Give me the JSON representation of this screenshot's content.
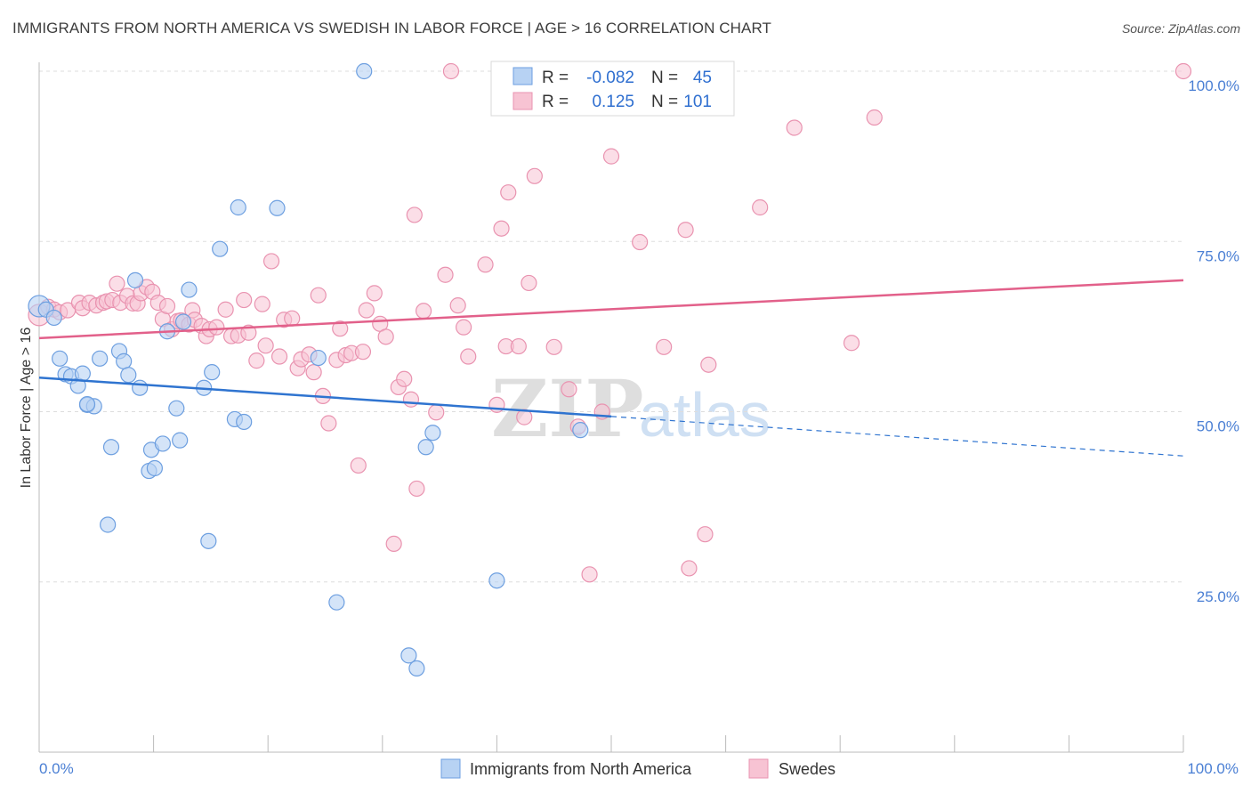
{
  "header": {
    "title": "IMMIGRANTS FROM NORTH AMERICA VS SWEDISH IN LABOR FORCE | AGE > 16 CORRELATION CHART",
    "source": "Source: ZipAtlas.com"
  },
  "legend": {
    "r_label": "R =",
    "n_label": "N =",
    "series": [
      {
        "r": "-0.082",
        "n": "45"
      },
      {
        "r": "0.125",
        "n": "101"
      }
    ]
  },
  "watermark": {
    "zip": "ZIP",
    "atlas": "atlas"
  },
  "colors": {
    "blue_fill": "#b7d2f3",
    "blue_stroke": "#6d9fe0",
    "blue_line": "#2f74d0",
    "pink_fill": "#f7c3d3",
    "pink_stroke": "#e993b0",
    "pink_line": "#e2608a",
    "tick_text": "#4a7fd4"
  },
  "chart_data": {
    "type": "scatter",
    "xlabel": "",
    "ylabel": "In Labor Force | Age > 16",
    "xlim": [
      0,
      100
    ],
    "ylim": [
      0,
      100
    ],
    "x_tick_labels": [
      "0.0%",
      "100.0%"
    ],
    "y_tick_labels": [
      "25.0%",
      "50.0%",
      "75.0%",
      "100.0%"
    ],
    "y_ticks": [
      25,
      50,
      75,
      100
    ],
    "grid": "horizontal dashed",
    "legend_position": "top-center",
    "series": [
      {
        "name": "Immigrants from North America",
        "color": "#6d9fe0",
        "trend": {
          "x0": 0,
          "y0": 55.0,
          "x1": 50,
          "y1": 49.3,
          "dash_to_x": 100,
          "dash_to_y": 43.5
        },
        "points": [
          [
            0.0,
            65.5
          ],
          [
            0.6,
            65.0
          ],
          [
            1.3,
            63.8
          ],
          [
            1.8,
            57.8
          ],
          [
            2.3,
            55.5
          ],
          [
            2.8,
            55.2
          ],
          [
            3.4,
            53.8
          ],
          [
            3.8,
            55.6
          ],
          [
            4.2,
            51.0
          ],
          [
            4.8,
            50.8
          ],
          [
            5.3,
            57.8
          ],
          [
            6.3,
            44.8
          ],
          [
            7.0,
            58.9
          ],
          [
            7.4,
            57.4
          ],
          [
            7.8,
            55.4
          ],
          [
            6.0,
            33.4
          ],
          [
            8.4,
            69.3
          ],
          [
            8.8,
            53.5
          ],
          [
            9.6,
            41.3
          ],
          [
            9.8,
            44.4
          ],
          [
            10.1,
            41.7
          ],
          [
            10.8,
            45.3
          ],
          [
            11.2,
            61.8
          ],
          [
            12.0,
            50.5
          ],
          [
            12.3,
            45.8
          ],
          [
            12.6,
            63.2
          ],
          [
            13.1,
            67.9
          ],
          [
            14.4,
            53.5
          ],
          [
            14.8,
            31.0
          ],
          [
            15.1,
            55.8
          ],
          [
            15.8,
            73.9
          ],
          [
            17.1,
            48.9
          ],
          [
            17.4,
            80.0
          ],
          [
            17.9,
            48.5
          ],
          [
            20.8,
            79.9
          ],
          [
            24.4,
            57.9
          ],
          [
            26.0,
            22.0
          ],
          [
            28.4,
            100.0
          ],
          [
            32.3,
            14.2
          ],
          [
            33.0,
            12.3
          ],
          [
            33.8,
            44.8
          ],
          [
            34.4,
            46.9
          ],
          [
            40.0,
            25.2
          ],
          [
            47.3,
            47.3
          ],
          [
            4.2,
            51.1
          ]
        ]
      },
      {
        "name": "Swedes",
        "color": "#e993b0",
        "trend": {
          "x0": 0,
          "y0": 60.8,
          "x1": 100,
          "y1": 69.3
        },
        "points": [
          [
            0.0,
            64.2
          ],
          [
            0.8,
            65.4
          ],
          [
            1.3,
            65.0
          ],
          [
            1.8,
            64.6
          ],
          [
            2.5,
            64.9
          ],
          [
            3.5,
            66.0
          ],
          [
            3.8,
            65.2
          ],
          [
            4.4,
            66.0
          ],
          [
            5.0,
            65.6
          ],
          [
            5.6,
            66.0
          ],
          [
            5.9,
            66.2
          ],
          [
            6.4,
            66.4
          ],
          [
            6.8,
            68.8
          ],
          [
            7.1,
            66.0
          ],
          [
            7.7,
            67.0
          ],
          [
            8.2,
            65.9
          ],
          [
            8.6,
            65.9
          ],
          [
            8.9,
            67.4
          ],
          [
            9.4,
            68.3
          ],
          [
            9.9,
            67.6
          ],
          [
            10.4,
            66.0
          ],
          [
            10.8,
            63.6
          ],
          [
            11.2,
            65.5
          ],
          [
            11.6,
            62.1
          ],
          [
            12.1,
            63.3
          ],
          [
            12.4,
            63.4
          ],
          [
            13.1,
            62.8
          ],
          [
            13.4,
            64.9
          ],
          [
            13.6,
            63.5
          ],
          [
            14.2,
            62.6
          ],
          [
            14.6,
            61.1
          ],
          [
            14.9,
            62.1
          ],
          [
            15.5,
            62.4
          ],
          [
            16.3,
            65.0
          ],
          [
            16.8,
            61.1
          ],
          [
            17.4,
            61.2
          ],
          [
            17.9,
            66.4
          ],
          [
            18.3,
            61.6
          ],
          [
            19.0,
            57.5
          ],
          [
            19.5,
            65.8
          ],
          [
            19.8,
            59.7
          ],
          [
            20.3,
            72.1
          ],
          [
            21.0,
            58.1
          ],
          [
            21.4,
            63.5
          ],
          [
            22.1,
            63.7
          ],
          [
            22.6,
            56.4
          ],
          [
            22.9,
            57.7
          ],
          [
            23.6,
            58.4
          ],
          [
            24.0,
            55.8
          ],
          [
            24.4,
            67.1
          ],
          [
            24.8,
            52.3
          ],
          [
            25.3,
            48.3
          ],
          [
            26.0,
            57.6
          ],
          [
            26.3,
            62.2
          ],
          [
            26.8,
            58.3
          ],
          [
            27.3,
            58.6
          ],
          [
            27.9,
            42.1
          ],
          [
            28.3,
            58.8
          ],
          [
            28.6,
            64.9
          ],
          [
            29.3,
            67.4
          ],
          [
            29.8,
            62.9
          ],
          [
            30.3,
            61.0
          ],
          [
            31.0,
            30.6
          ],
          [
            31.4,
            53.6
          ],
          [
            31.9,
            54.8
          ],
          [
            32.5,
            51.8
          ],
          [
            32.8,
            78.9
          ],
          [
            33.0,
            38.7
          ],
          [
            33.6,
            64.8
          ],
          [
            34.7,
            49.9
          ],
          [
            35.5,
            70.1
          ],
          [
            36.6,
            65.6
          ],
          [
            37.1,
            62.4
          ],
          [
            37.5,
            58.1
          ],
          [
            39.0,
            71.6
          ],
          [
            40.0,
            51.0
          ],
          [
            40.4,
            76.9
          ],
          [
            40.8,
            59.6
          ],
          [
            41.0,
            82.2
          ],
          [
            41.9,
            59.6
          ],
          [
            42.4,
            49.2
          ],
          [
            42.8,
            68.9
          ],
          [
            43.3,
            84.6
          ],
          [
            45.0,
            59.5
          ],
          [
            46.3,
            53.3
          ],
          [
            47.1,
            47.8
          ],
          [
            48.1,
            26.1
          ],
          [
            49.2,
            50.0
          ],
          [
            50.0,
            87.5
          ],
          [
            52.5,
            74.9
          ],
          [
            54.6,
            59.5
          ],
          [
            56.5,
            76.7
          ],
          [
            56.8,
            27.0
          ],
          [
            58.2,
            32.0
          ],
          [
            58.5,
            56.9
          ],
          [
            63.0,
            80.0
          ],
          [
            66.0,
            91.7
          ],
          [
            71.0,
            60.1
          ],
          [
            73.0,
            93.2
          ],
          [
            100.0,
            100.0
          ],
          [
            36.0,
            100.0
          ]
        ]
      }
    ]
  },
  "bottom_legend": {
    "items": [
      "Immigrants from North America",
      "Swedes"
    ]
  }
}
